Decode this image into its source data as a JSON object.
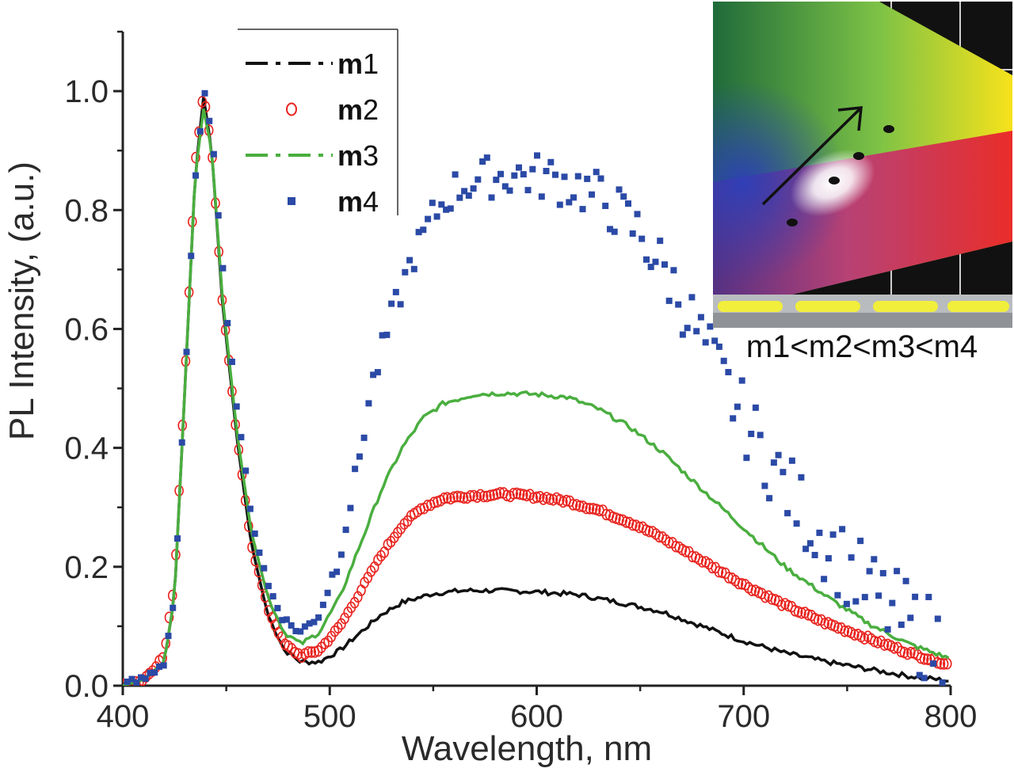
{
  "chart_data": {
    "type": "line",
    "title": "",
    "xlabel": "Wavelength, nm",
    "ylabel": "PL Intensity, (a.u.)",
    "xlim": [
      400,
      800
    ],
    "ylim": [
      0,
      1.1
    ],
    "x_ticks": [
      400,
      500,
      600,
      700,
      800
    ],
    "x_tick_labels": [
      "400",
      "500",
      "600",
      "700",
      "800"
    ],
    "y_ticks": [
      0,
      0.2,
      0.4,
      0.6,
      0.8,
      1.0
    ],
    "y_tick_labels": [
      "0.0",
      "0.2",
      "0.4",
      "0.6",
      "0.8",
      "1.0"
    ],
    "legend_position": "top-center",
    "series": [
      {
        "name": "m1",
        "name_letter": "m",
        "name_number": "1",
        "style": "dash-dot",
        "color": "#111111",
        "points": [
          [
            400,
            0.0
          ],
          [
            410,
            0.01
          ],
          [
            420,
            0.04
          ],
          [
            425,
            0.15
          ],
          [
            430,
            0.5
          ],
          [
            435,
            0.86
          ],
          [
            439,
            0.99
          ],
          [
            443,
            0.9
          ],
          [
            448,
            0.65
          ],
          [
            455,
            0.42
          ],
          [
            462,
            0.24
          ],
          [
            470,
            0.12
          ],
          [
            478,
            0.06
          ],
          [
            486,
            0.04
          ],
          [
            495,
            0.04
          ],
          [
            505,
            0.06
          ],
          [
            515,
            0.09
          ],
          [
            525,
            0.12
          ],
          [
            535,
            0.14
          ],
          [
            550,
            0.155
          ],
          [
            565,
            0.16
          ],
          [
            580,
            0.16
          ],
          [
            600,
            0.158
          ],
          [
            620,
            0.153
          ],
          [
            640,
            0.14
          ],
          [
            660,
            0.125
          ],
          [
            680,
            0.1
          ],
          [
            700,
            0.075
          ],
          [
            720,
            0.055
          ],
          [
            740,
            0.04
          ],
          [
            760,
            0.028
          ],
          [
            780,
            0.016
          ],
          [
            800,
            0.008
          ]
        ]
      },
      {
        "name": "m2",
        "name_letter": "m",
        "name_number": "2",
        "style": "open-circle",
        "color": "#e8231e",
        "points": [
          [
            400,
            0.0
          ],
          [
            410,
            0.01
          ],
          [
            420,
            0.05
          ],
          [
            425,
            0.18
          ],
          [
            430,
            0.52
          ],
          [
            435,
            0.88
          ],
          [
            439,
            1.0
          ],
          [
            443,
            0.9
          ],
          [
            448,
            0.65
          ],
          [
            455,
            0.42
          ],
          [
            462,
            0.24
          ],
          [
            470,
            0.13
          ],
          [
            478,
            0.07
          ],
          [
            486,
            0.05
          ],
          [
            495,
            0.06
          ],
          [
            505,
            0.1
          ],
          [
            515,
            0.16
          ],
          [
            525,
            0.22
          ],
          [
            535,
            0.27
          ],
          [
            545,
            0.3
          ],
          [
            555,
            0.315
          ],
          [
            570,
            0.32
          ],
          [
            585,
            0.322
          ],
          [
            600,
            0.318
          ],
          [
            615,
            0.31
          ],
          [
            630,
            0.295
          ],
          [
            645,
            0.275
          ],
          [
            660,
            0.25
          ],
          [
            680,
            0.21
          ],
          [
            700,
            0.17
          ],
          [
            720,
            0.135
          ],
          [
            740,
            0.105
          ],
          [
            760,
            0.08
          ],
          [
            780,
            0.055
          ],
          [
            800,
            0.035
          ]
        ]
      },
      {
        "name": "m3",
        "name_letter": "m",
        "name_number": "3",
        "style": "dash-dot",
        "color": "#4aae3f",
        "points": [
          [
            400,
            0.0
          ],
          [
            410,
            0.01
          ],
          [
            420,
            0.04
          ],
          [
            425,
            0.15
          ],
          [
            430,
            0.5
          ],
          [
            435,
            0.86
          ],
          [
            439,
            0.97
          ],
          [
            443,
            0.9
          ],
          [
            448,
            0.66
          ],
          [
            455,
            0.43
          ],
          [
            462,
            0.26
          ],
          [
            470,
            0.15
          ],
          [
            478,
            0.09
          ],
          [
            486,
            0.07
          ],
          [
            495,
            0.09
          ],
          [
            505,
            0.15
          ],
          [
            515,
            0.24
          ],
          [
            525,
            0.33
          ],
          [
            535,
            0.4
          ],
          [
            545,
            0.45
          ],
          [
            555,
            0.475
          ],
          [
            570,
            0.49
          ],
          [
            585,
            0.492
          ],
          [
            600,
            0.49
          ],
          [
            615,
            0.485
          ],
          [
            630,
            0.465
          ],
          [
            645,
            0.435
          ],
          [
            660,
            0.395
          ],
          [
            680,
            0.33
          ],
          [
            700,
            0.265
          ],
          [
            720,
            0.2
          ],
          [
            740,
            0.15
          ],
          [
            760,
            0.105
          ],
          [
            780,
            0.07
          ],
          [
            800,
            0.045
          ]
        ]
      },
      {
        "name": "m4",
        "name_letter": "m",
        "name_number": "4",
        "style": "filled-square",
        "color": "#2b4aa6",
        "points": [
          [
            400,
            0.0
          ],
          [
            410,
            0.01
          ],
          [
            420,
            0.04
          ],
          [
            425,
            0.15
          ],
          [
            430,
            0.5
          ],
          [
            435,
            0.86
          ],
          [
            440,
            1.0
          ],
          [
            444,
            0.9
          ],
          [
            449,
            0.67
          ],
          [
            456,
            0.44
          ],
          [
            463,
            0.27
          ],
          [
            470,
            0.17
          ],
          [
            478,
            0.11
          ],
          [
            486,
            0.09
          ],
          [
            495,
            0.12
          ],
          [
            503,
            0.2
          ],
          [
            512,
            0.34
          ],
          [
            520,
            0.5
          ],
          [
            530,
            0.62
          ],
          [
            540,
            0.72
          ],
          [
            550,
            0.79
          ],
          [
            560,
            0.835
          ],
          [
            575,
            0.855
          ],
          [
            590,
            0.86
          ],
          [
            605,
            0.855
          ],
          [
            620,
            0.84
          ],
          [
            635,
            0.81
          ],
          [
            650,
            0.76
          ],
          [
            665,
            0.68
          ],
          [
            680,
            0.58
          ],
          [
            695,
            0.48
          ],
          [
            710,
            0.39
          ],
          [
            725,
            0.31
          ],
          [
            740,
            0.24
          ],
          [
            755,
            0.18
          ],
          [
            770,
            0.13
          ],
          [
            785,
            0.09
          ],
          [
            800,
            0.06
          ]
        ]
      }
    ],
    "inset": {
      "description_label": "CIE chromaticity diagram",
      "caption": "m1<m2<m3<m4",
      "arrow": "increasing m1 to m4"
    }
  }
}
